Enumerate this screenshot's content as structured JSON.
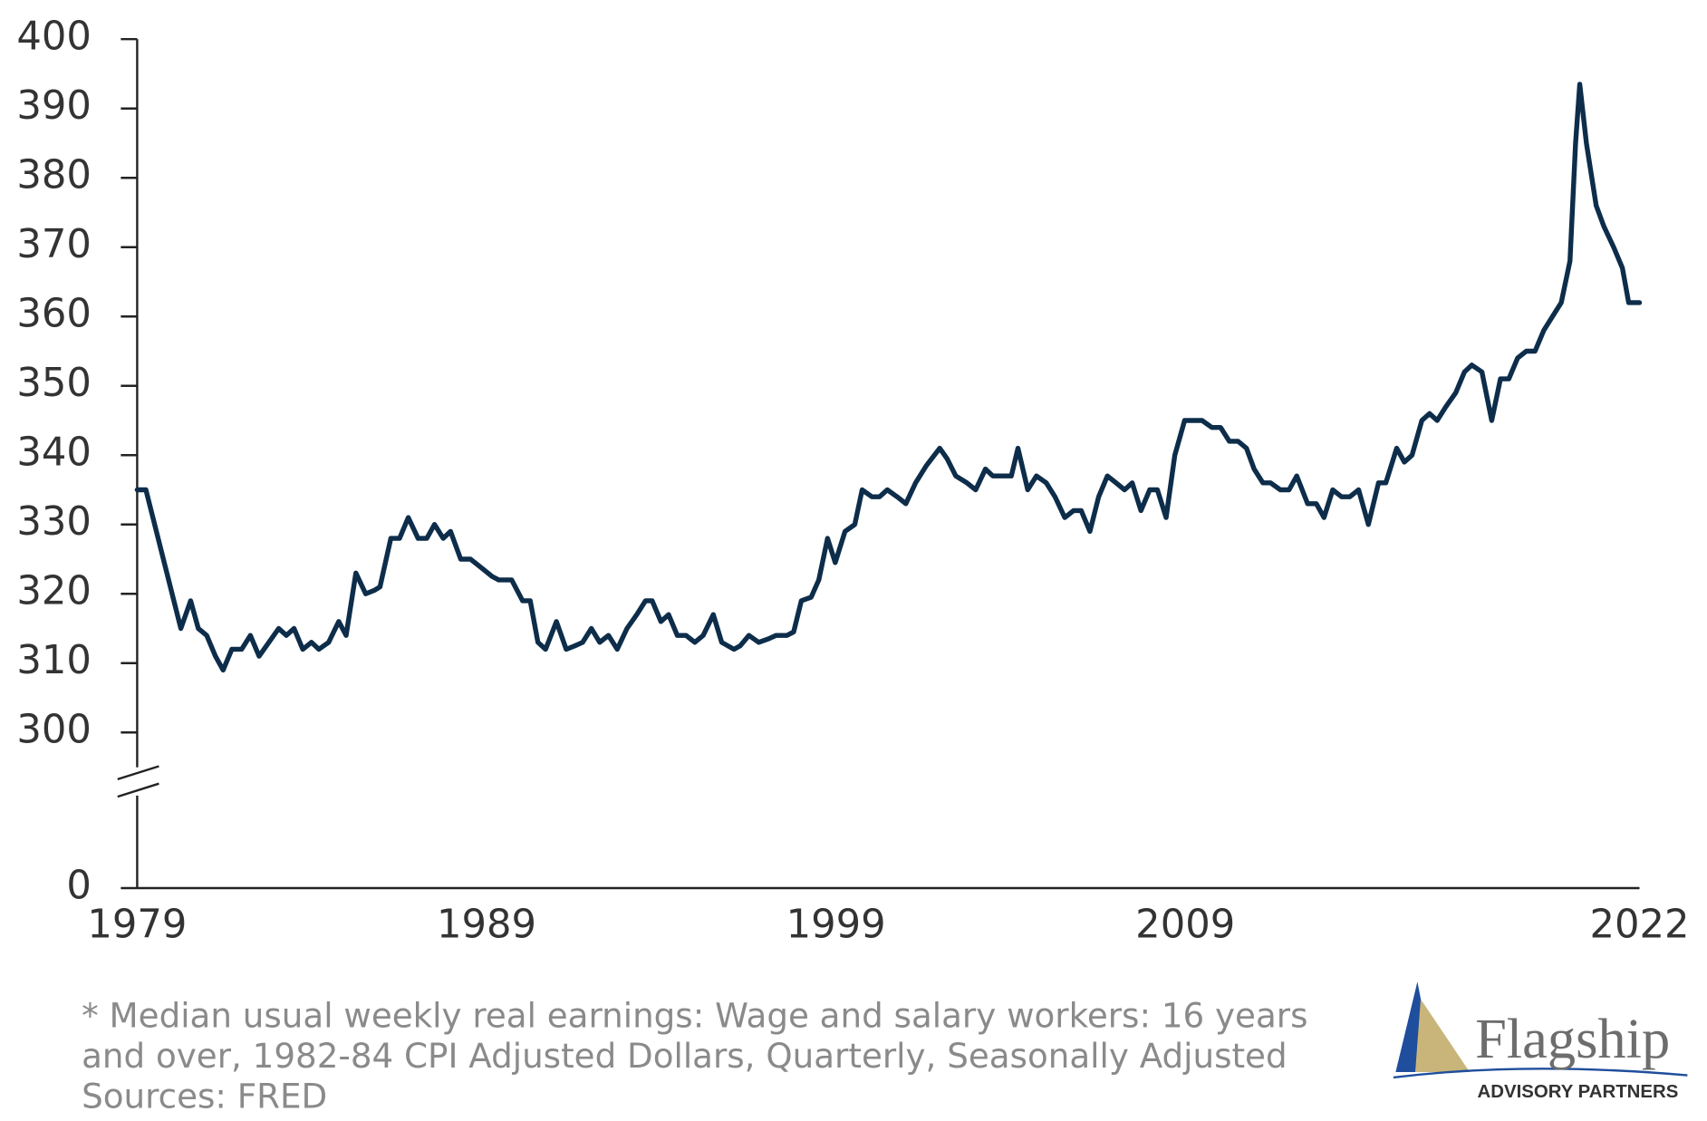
{
  "chart_data": {
    "type": "line",
    "color": "#0d2d4a",
    "xlim": [
      1979,
      2022
    ],
    "xticks": [
      1979,
      1989,
      1999,
      2009,
      2022
    ],
    "ylim": [
      0,
      400
    ],
    "y_break": [
      0,
      300
    ],
    "yticks": [
      0,
      300,
      310,
      320,
      330,
      340,
      350,
      360,
      370,
      380,
      390,
      400
    ],
    "x": [
      1979.0,
      1979.25,
      1979.5,
      1979.9,
      1980.25,
      1980.53,
      1980.75,
      1980.99,
      1981.24,
      1981.46,
      1981.71,
      1981.99,
      1982.24,
      1982.49,
      1982.77,
      1983.05,
      1983.27,
      1983.49,
      1983.74,
      1983.99,
      1984.2,
      1984.48,
      1984.77,
      1984.98,
      1985.26,
      1985.54,
      1985.79,
      1985.95,
      1986.26,
      1986.51,
      1986.76,
      1987.04,
      1987.29,
      1987.51,
      1987.76,
      1987.97,
      1988.26,
      1988.54,
      1988.79,
      1989.16,
      1989.35,
      1989.72,
      1990.03,
      1990.25,
      1990.47,
      1990.69,
      1991.0,
      1991.28,
      1991.53,
      1991.75,
      1992.0,
      1992.24,
      1992.49,
      1992.74,
      1993.02,
      1993.3,
      1993.55,
      1993.74,
      1993.99,
      1994.21,
      1994.46,
      1994.71,
      1994.96,
      1995.2,
      1995.49,
      1995.73,
      1996.08,
      1996.26,
      1996.51,
      1996.79,
      1997.07,
      1997.29,
      1997.6,
      1997.79,
      1998.01,
      1998.29,
      1998.51,
      1998.76,
      1998.98,
      1999.26,
      1999.54,
      1999.75,
      2000.03,
      2000.25,
      2000.47,
      2000.75,
      2001.0,
      2001.28,
      2001.59,
      2001.97,
      2002.18,
      2002.43,
      2002.75,
      2003.0,
      2003.28,
      2003.49,
      2003.81,
      2004.02,
      2004.21,
      2004.49,
      2004.74,
      2005.02,
      2005.27,
      2005.55,
      2005.8,
      2006.02,
      2006.27,
      2006.52,
      2006.77,
      2007.02,
      2007.26,
      2007.48,
      2007.73,
      2007.98,
      2008.2,
      2008.45,
      2008.7,
      2008.98,
      2009.23,
      2009.48,
      2009.76,
      2010.01,
      2010.26,
      2010.51,
      2010.75,
      2010.97,
      2011.22,
      2011.44,
      2011.72,
      2011.97,
      2012.19,
      2012.5,
      2012.75,
      2012.97,
      2013.22,
      2013.47,
      2013.71,
      2013.96,
      2014.24,
      2014.53,
      2014.74,
      2015.05,
      2015.27,
      2015.49,
      2015.77,
      2015.99,
      2016.21,
      2016.46,
      2016.74,
      2016.99,
      2017.2,
      2017.49,
      2017.77,
      2018.02,
      2018.26,
      2018.51,
      2018.76,
      2019.01,
      2019.26,
      2019.51,
      2019.76,
      2020.01,
      2020.17,
      2020.29,
      2020.48,
      2020.76,
      2020.98,
      2021.26,
      2021.51,
      2021.69,
      2022.0
    ],
    "values": [
      335,
      335,
      330,
      322,
      315,
      319,
      315,
      314,
      311,
      309,
      312,
      312,
      314,
      311,
      313,
      315,
      314,
      315,
      312,
      313,
      312,
      313,
      316,
      314,
      323,
      320,
      320.5,
      321,
      328,
      328,
      331,
      328,
      328,
      330,
      328,
      329,
      325,
      325,
      324,
      322.5,
      322,
      322,
      319,
      319,
      313,
      312,
      316,
      312,
      312.5,
      313,
      315,
      313,
      314,
      312,
      315,
      317,
      319,
      319,
      316,
      317,
      314,
      314,
      313,
      314,
      317,
      313,
      312,
      312.5,
      314,
      313,
      313.5,
      314,
      314,
      314.5,
      319,
      319.5,
      322,
      328,
      324.5,
      329,
      330,
      335,
      334,
      334,
      335,
      334,
      333,
      336,
      338.5,
      341,
      339.5,
      337,
      336,
      335,
      338,
      337,
      337,
      337,
      341,
      335,
      337,
      336,
      334,
      331,
      332,
      332,
      329,
      334,
      337,
      336,
      335,
      336,
      332,
      335,
      335,
      331,
      340,
      345,
      345,
      345,
      344,
      344,
      342,
      342,
      341,
      338,
      336,
      336,
      335,
      335,
      337,
      333,
      333,
      331,
      335,
      334,
      334,
      335,
      330,
      336,
      336,
      341,
      339,
      340,
      345,
      346,
      345,
      347,
      349,
      352,
      353,
      352,
      345,
      351,
      351,
      354,
      355,
      355,
      358,
      360,
      362,
      368,
      385,
      393.5,
      385,
      376,
      373,
      370,
      367,
      362,
      362
    ],
    "annotations": [
      "* Median usual weekly real earnings: Wage and salary workers: 16 years",
      "and over, 1982-84 CPI Adjusted Dollars, Quarterly, Seasonally Adjusted",
      "Sources: FRED"
    ],
    "logo_text": [
      "Flagship",
      "ADVISORY PARTNERS"
    ]
  }
}
